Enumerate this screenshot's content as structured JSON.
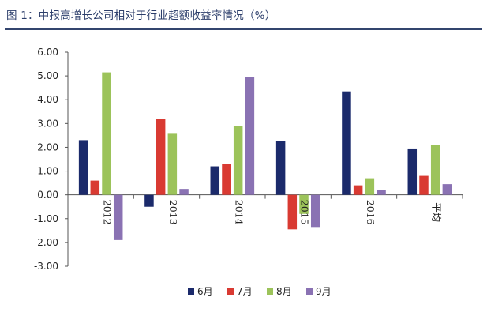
{
  "title": "图 1：中报高增长公司相对于行业超额收益率情况（%）",
  "chart_data": {
    "type": "bar",
    "title": "图 1：中报高增长公司相对于行业超额收益率情况（%）",
    "xlabel": "",
    "ylabel": "",
    "categories": [
      "2012",
      "2013",
      "2014",
      "2015",
      "2016",
      "平均"
    ],
    "y_ticks": [
      "6.00",
      "5.00",
      "4.00",
      "3.00",
      "2.00",
      "1.00",
      "0.00",
      "-1.00",
      "-2.00",
      "-3.00"
    ],
    "ylim": [
      -3,
      6
    ],
    "grid": false,
    "legend_position": "bottom",
    "series": [
      {
        "name": "6月",
        "color": "#1b2a6b",
        "values": [
          2.3,
          -0.5,
          1.2,
          2.25,
          4.35,
          1.95
        ]
      },
      {
        "name": "7月",
        "color": "#d93a32",
        "values": [
          0.6,
          3.2,
          1.3,
          -1.45,
          0.4,
          0.8
        ]
      },
      {
        "name": "8月",
        "color": "#9cc35a",
        "values": [
          5.15,
          2.6,
          2.9,
          -0.8,
          0.7,
          2.1
        ]
      },
      {
        "name": "9月",
        "color": "#8a72b3",
        "values": [
          -1.9,
          0.25,
          4.95,
          -1.35,
          0.2,
          0.45
        ]
      }
    ]
  }
}
